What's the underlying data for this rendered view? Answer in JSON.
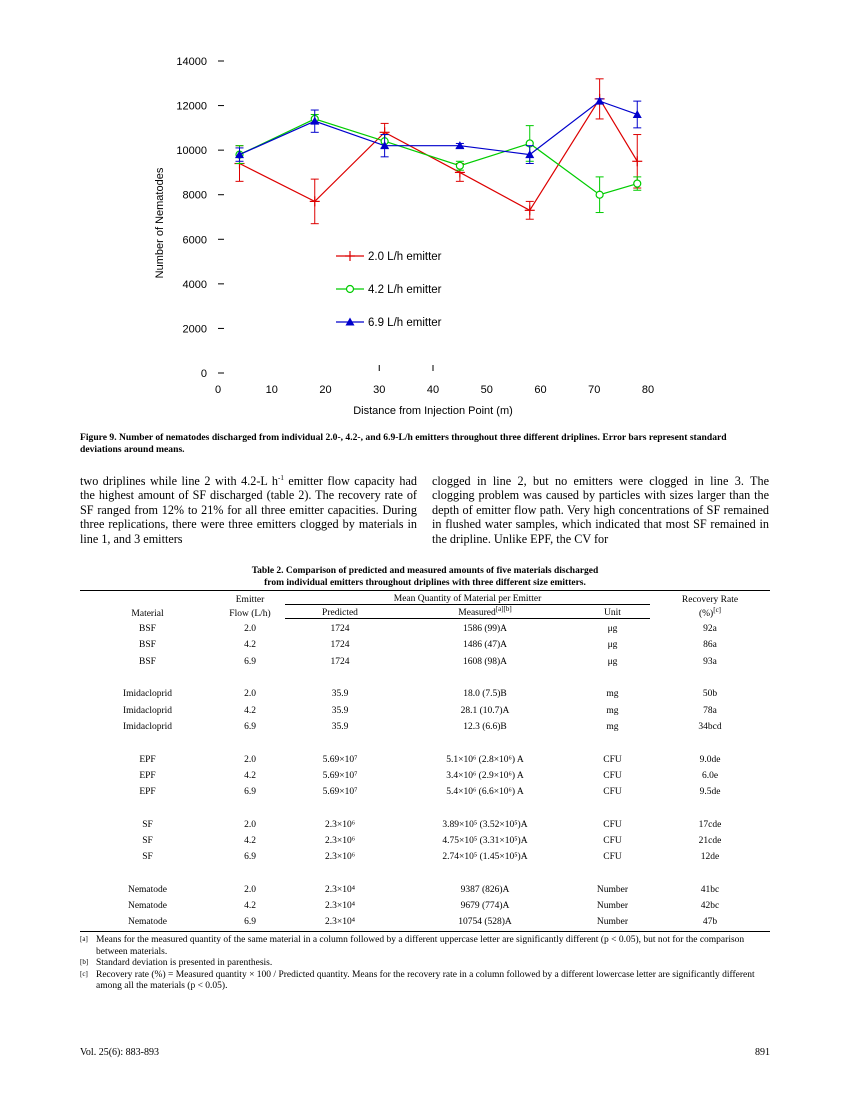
{
  "chart_data": {
    "type": "line",
    "xlabel": "Distance from Injection Point (m)",
    "ylabel": "Number of Nematodes",
    "xlim": [
      0,
      80
    ],
    "ylim": [
      0,
      14000
    ],
    "xticks": [
      0,
      10,
      20,
      30,
      40,
      50,
      60,
      70,
      80
    ],
    "yticks": [
      0,
      2000,
      4000,
      6000,
      8000,
      10000,
      12000,
      14000
    ],
    "xtick_labels": [
      "0",
      "10",
      "20",
      "30",
      "40",
      "50",
      "60",
      "70",
      "80"
    ],
    "ytick_labels": [
      "0",
      "2000",
      "4000",
      "6000",
      "8000",
      "10000",
      "12000",
      "14000"
    ],
    "grid": false,
    "legend_position": "center-left",
    "series": [
      {
        "name": "2.0 L/h emitter",
        "color": "#dd0000",
        "marker": "plus",
        "x": [
          4,
          18,
          31,
          45,
          58,
          71,
          78
        ],
        "y": [
          9400,
          7700,
          10800,
          9000,
          7300,
          12300,
          9500
        ],
        "err": [
          800,
          1000,
          400,
          400,
          400,
          900,
          1200
        ]
      },
      {
        "name": "4.2 L/h emitter",
        "color": "#00cc00",
        "marker": "circle",
        "x": [
          4,
          18,
          31,
          45,
          58,
          71,
          78
        ],
        "y": [
          9800,
          11400,
          10400,
          9300,
          10300,
          8000,
          8500
        ],
        "err": [
          400,
          200,
          300,
          200,
          800,
          800,
          300
        ]
      },
      {
        "name": "6.9 L/h emitter",
        "color": "#0000cc",
        "marker": "triangle",
        "x": [
          4,
          18,
          31,
          45,
          58,
          71,
          78
        ],
        "y": [
          9800,
          11300,
          10200,
          10200,
          9800,
          12200,
          11600
        ],
        "err": [
          300,
          500,
          500,
          100,
          400,
          100,
          600
        ]
      }
    ]
  },
  "figure_caption": "Figure 9. Number of nematodes discharged from individual 2.0-, 4.2-, and 6.9-L/h emitters throughout three different driplines. Error bars represent standard deviations around means.",
  "left_col": {
    "t1": "two driplines while line 2 with 4.2-L h",
    "sup": "-1",
    "t2": " emitter flow capacity had the highest amount of SF discharged (table 2). The recovery rate of SF ranged from 12% to 21% for all three emitter capacities. During three replications, there were three emitters clogged by materials in line 1, and 3 emitters"
  },
  "right_col": "clogged in line 2, but no emitters were clogged in line 3. The clogging problem was caused by particles with sizes larger than the depth of emitter flow path. Very high concentrations of SF remained in flushed water samples, which indicated that most SF remained in the dripline. Unlike EPF, the CV for",
  "table": {
    "title_line1": "Table 2. Comparison of predicted and measured amounts of five materials discharged",
    "title_line2": "from individual emitters throughout driplines with three different size emitters.",
    "h_material": "Material",
    "h_flow1": "Emitter",
    "h_flow2": "Flow (L/h)",
    "h_mean": "Mean Quantity of Material per Emitter",
    "h_pred": "Predicted",
    "h_meas": "Measured",
    "h_meas_sup": "[a][b]",
    "h_unit": "Unit",
    "h_rate1": "Recovery Rate",
    "h_rate2": "(%)",
    "h_rate_sup": "[c]",
    "groups": [
      {
        "rows": [
          {
            "material": "BSF",
            "flow": "2.0",
            "pred": "1724",
            "meas": "1586 (99)A",
            "unit": "μg",
            "rate": "92a"
          },
          {
            "material": "BSF",
            "flow": "4.2",
            "pred": "1724",
            "meas": "1486 (47)A",
            "unit": "μg",
            "rate": "86a"
          },
          {
            "material": "BSF",
            "flow": "6.9",
            "pred": "1724",
            "meas": "1608 (98)A",
            "unit": "μg",
            "rate": "93a"
          }
        ]
      },
      {
        "rows": [
          {
            "material": "Imidacloprid",
            "flow": "2.0",
            "pred": "35.9",
            "meas": "18.0 (7.5)B",
            "unit": "mg",
            "rate": "50b"
          },
          {
            "material": "Imidacloprid",
            "flow": "4.2",
            "pred": "35.9",
            "meas": "28.1 (10.7)A",
            "unit": "mg",
            "rate": "78a"
          },
          {
            "material": "Imidacloprid",
            "flow": "6.9",
            "pred": "35.9",
            "meas": "12.3 (6.6)B",
            "unit": "mg",
            "rate": "34bcd"
          }
        ]
      },
      {
        "rows": [
          {
            "material": "EPF",
            "flow": "2.0",
            "pred": "5.69×10⁷",
            "meas": "5.1×10⁶ (2.8×10⁶) A",
            "unit": "CFU",
            "rate": "9.0de"
          },
          {
            "material": "EPF",
            "flow": "4.2",
            "pred": "5.69×10⁷",
            "meas": "3.4×10⁶ (2.9×10⁶) A",
            "unit": "CFU",
            "rate": "6.0e"
          },
          {
            "material": "EPF",
            "flow": "6.9",
            "pred": "5.69×10⁷",
            "meas": "5.4×10⁶ (6.6×10⁶) A",
            "unit": "CFU",
            "rate": "9.5de"
          }
        ]
      },
      {
        "rows": [
          {
            "material": "SF",
            "flow": "2.0",
            "pred": "2.3×10⁶",
            "meas": "3.89×10⁵ (3.52×10⁵)A",
            "unit": "CFU",
            "rate": "17cde"
          },
          {
            "material": "SF",
            "flow": "4.2",
            "pred": "2.3×10⁶",
            "meas": "4.75×10⁵ (3.31×10⁵)A",
            "unit": "CFU",
            "rate": "21cde"
          },
          {
            "material": "SF",
            "flow": "6.9",
            "pred": "2.3×10⁶",
            "meas": "2.74×10⁵ (1.45×10⁵)A",
            "unit": "CFU",
            "rate": "12de"
          }
        ]
      },
      {
        "rows": [
          {
            "material": "Nematode",
            "flow": "2.0",
            "pred": "2.3×10⁴",
            "meas": "9387 (826)A",
            "unit": "Number",
            "rate": "41bc"
          },
          {
            "material": "Nematode",
            "flow": "4.2",
            "pred": "2.3×10⁴",
            "meas": "9679 (774)A",
            "unit": "Number",
            "rate": "42bc"
          },
          {
            "material": "Nematode",
            "flow": "6.9",
            "pred": "2.3×10⁴",
            "meas": "10754 (528)A",
            "unit": "Number",
            "rate": "47b"
          }
        ]
      }
    ]
  },
  "notes": [
    {
      "mark": "[a]",
      "text": "Means for the measured quantity of the same material in a column followed by a different uppercase letter are significantly different (p < 0.05), but not for the comparison between materials."
    },
    {
      "mark": "[b]",
      "text": "Standard deviation is presented in parenthesis."
    },
    {
      "mark": "[c]",
      "text": "Recovery rate (%) = Measured quantity × 100 / Predicted quantity. Means for the recovery rate in a column followed by a different lowercase letter are significantly different among all the materials (p < 0.05)."
    }
  ],
  "footer": {
    "left": "Vol. 25(6): 883-893",
    "right": "891"
  }
}
